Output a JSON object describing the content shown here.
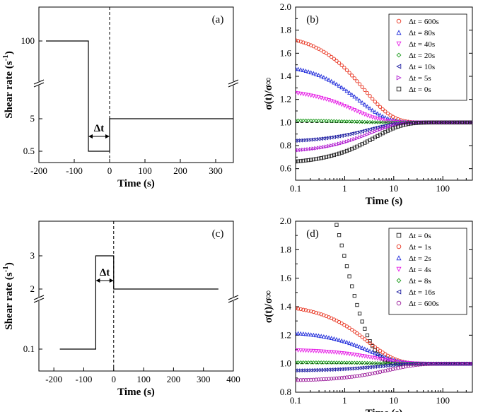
{
  "chart_data": [
    {
      "id": "a",
      "type": "line",
      "panel_label": "(a)",
      "xlabel": "Time (s)",
      "ylabel": "Shear rate (s",
      "ylabel_sup": "-1",
      "ylabel_close": ")",
      "xlim": [
        -200,
        350
      ],
      "xticks": [
        -200,
        -100,
        0,
        100,
        200,
        300
      ],
      "y_broken_axis": true,
      "ytick_labels": [
        "0.5",
        "5",
        "100"
      ],
      "segments": [
        {
          "name": "step",
          "points": [
            [
              -180,
              100
            ],
            [
              -60,
              100
            ],
            [
              -60,
              0.5
            ],
            [
              0,
              0.5
            ],
            [
              0,
              5
            ],
            [
              350,
              5
            ]
          ]
        }
      ],
      "delta_annotation": {
        "text": "Δt",
        "from": -60,
        "to": 0
      },
      "vline_x": 0
    },
    {
      "id": "b",
      "type": "scatter",
      "panel_label": "(b)",
      "xlabel": "Time (s)",
      "ylabel": "σ(t)/σ∞",
      "xscale": "log",
      "xlim": [
        0.1,
        400
      ],
      "ylim": [
        0.5,
        2.0
      ],
      "xtick_labels": [
        "0.1",
        "1",
        "10",
        "100"
      ],
      "yticks": [
        "0.6",
        "0.8",
        "1.0",
        "1.2",
        "1.4",
        "1.6",
        "1.8",
        "2.0"
      ],
      "hline_y": 1.0,
      "legend_position": "top-right",
      "series": [
        {
          "name": "Δt = 600s",
          "color": "#e8301c",
          "marker": "circle",
          "start": 1.78,
          "tau": 2.5
        },
        {
          "name": "Δt = 80s",
          "color": "#1f2bdb",
          "marker": "triangle-up",
          "start": 1.52,
          "tau": 2.0
        },
        {
          "name": "Δt = 40s",
          "color": "#e61ce6",
          "marker": "triangle-down",
          "start": 1.29,
          "tau": 1.6
        },
        {
          "name": "Δt = 20s",
          "color": "#1a9a1a",
          "marker": "diamond",
          "start": 1.02,
          "tau": 1.5
        },
        {
          "name": "Δt = 10s",
          "color": "#1a1aa0",
          "marker": "triangle-left",
          "start": 0.83,
          "tau": 3.0
        },
        {
          "name": "Δt = 5s",
          "color": "#b01ad0",
          "marker": "triangle-right",
          "start": 0.74,
          "tau": 3.2
        },
        {
          "name": "Δt = 0s",
          "color": "#222222",
          "marker": "square",
          "start": 0.64,
          "tau": 4.0
        }
      ]
    },
    {
      "id": "c",
      "type": "line",
      "panel_label": "(c)",
      "xlabel": "Time (s)",
      "ylabel": "Shear rate (s",
      "ylabel_sup": "-1",
      "ylabel_close": ")",
      "xlim": [
        -250,
        400
      ],
      "xticks": [
        -200,
        -100,
        0,
        100,
        200,
        300,
        400
      ],
      "y_broken_axis": true,
      "ytick_labels": [
        "0.1",
        "2",
        "3"
      ],
      "segments": [
        {
          "name": "step",
          "points": [
            [
              -180,
              0.1
            ],
            [
              -60,
              0.1
            ],
            [
              -60,
              3
            ],
            [
              0,
              3
            ],
            [
              0,
              2
            ],
            [
              350,
              2
            ]
          ]
        }
      ],
      "delta_annotation": {
        "text": "Δt",
        "from": -60,
        "to": 0
      },
      "vline_x": 0
    },
    {
      "id": "d",
      "type": "scatter",
      "panel_label": "(d)",
      "xlabel": "Time (s)",
      "ylabel": "σ(t)/σ∞",
      "xscale": "log",
      "xlim": [
        0.1,
        400
      ],
      "ylim": [
        0.8,
        2.0
      ],
      "xtick_labels": [
        "0.1",
        "1",
        "10",
        "100"
      ],
      "yticks": [
        "0.8",
        "1.0",
        "1.2",
        "1.4",
        "1.6",
        "1.8",
        "2.0"
      ],
      "hline_y": 1.0,
      "legend_position": "top-right",
      "series": [
        {
          "name": "Δt = 0s",
          "color": "#222222",
          "marker": "square",
          "start": 3.2,
          "tau": 0.9
        },
        {
          "name": "Δt = 1s",
          "color": "#e8301c",
          "marker": "circle",
          "start": 1.42,
          "tau": 3.0
        },
        {
          "name": "Δt = 2s",
          "color": "#1f2bdb",
          "marker": "triangle-up",
          "start": 1.23,
          "tau": 3.5
        },
        {
          "name": "Δt = 4s",
          "color": "#e61ce6",
          "marker": "triangle-down",
          "start": 1.1,
          "tau": 4.5
        },
        {
          "name": "Δt = 8s",
          "color": "#1a9a1a",
          "marker": "diamond",
          "start": 1.01,
          "tau": 5.0
        },
        {
          "name": "Δt = 16s",
          "color": "#1a1aa0",
          "marker": "triangle-left",
          "start": 0.95,
          "tau": 5.0
        },
        {
          "name": "Δt = 600s",
          "color": "#9a1a9a",
          "marker": "circle",
          "start": 0.88,
          "tau": 8.0
        }
      ]
    }
  ]
}
